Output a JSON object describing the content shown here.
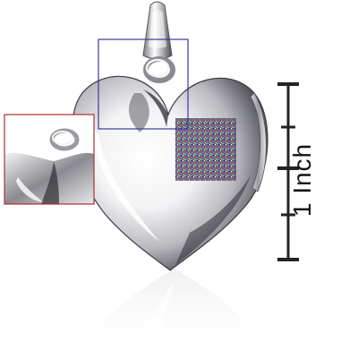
{
  "scale_ruler": {
    "label": "1 Inch",
    "color": "#222222"
  },
  "product": {
    "subject": "heart-shaped-locket-pendant",
    "metal_color": "#c8c8cc"
  },
  "zoom_boxes": [
    {
      "name": "bail-detail-box",
      "color": "#3a3aa0"
    },
    {
      "name": "inset-zoom-box",
      "color": "#b03030"
    }
  ]
}
